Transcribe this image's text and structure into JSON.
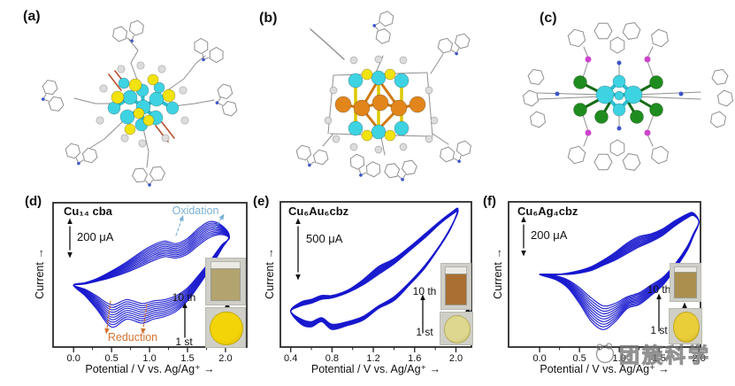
{
  "palette": {
    "curve_blue": "#1717cd",
    "oxidation_blue": "#7ab0d4",
    "reduction_orange": "#d2722e",
    "box_black": "#2b2b2b",
    "wire_gray": "#8f8f8f",
    "h_gray": "#dcdcdc",
    "atom_cyan": "#3ed3e2",
    "atom_yellow": "#f2e20e",
    "atom_orange": "#e2861c",
    "atom_green": "#1f8c1f",
    "atom_magenta": "#cc44cc",
    "atom_blue": "#3c55c8",
    "bond_red": "#b5512a",
    "photo_bg": "#cfcfc8"
  },
  "top_panels": [
    {
      "label": "(a)"
    },
    {
      "label": "(b)"
    },
    {
      "label": "(c)"
    }
  ],
  "cv_panels": [
    {
      "label": "(d)",
      "title": "Cu₁₄ cba",
      "scale_bar": "200 μA",
      "y_axis_label": "Current →",
      "x_axis_label": "Potential / V vs. Ag/Ag⁺ →",
      "x_tick_labels": [
        "0.0",
        "0.5",
        "1.0",
        "1.5",
        "2.0"
      ],
      "cycle_first": "1 st",
      "cycle_last": "10 th",
      "oxidation_label": "Oxidation",
      "reduction_label": "Reduction",
      "inset": {
        "solution_color": "#b3a36e",
        "powder_color": "#f2d408",
        "powder_color_dark": "#d8b806"
      }
    },
    {
      "label": "(e)",
      "title": "Cu₆Au₆cbz",
      "scale_bar": "500 μA",
      "y_axis_label": "Current →",
      "x_axis_label": "Potential / V vs. Ag/Ag⁺ →",
      "x_tick_labels": [
        "0.4",
        "0.8",
        "1.2",
        "1.6",
        "2.0"
      ],
      "cycle_first": "1 st",
      "cycle_last": "10 th",
      "inset": {
        "solution_color": "#a96f33",
        "powder_color": "#ddd78f",
        "powder_color_dark": "#c6c071"
      }
    },
    {
      "label": "(f)",
      "title": "Cu₆Ag₄cbz",
      "scale_bar": "200 μA",
      "y_axis_label": "Current →",
      "x_axis_label": "Potential / V vs. Ag/Ag⁺ →",
      "x_tick_labels": [
        "0.0",
        "0.5",
        "1.0",
        "1.5",
        "2.0"
      ],
      "cycle_first": "1 st",
      "cycle_last": "10 th",
      "inset": {
        "solution_color": "#ab8f4f",
        "powder_color": "#e9cd39",
        "powder_color_dark": "#cfb122"
      }
    }
  ],
  "watermark": {
    "text": "团簇科学"
  },
  "chart_data": [
    {
      "type": "line",
      "title": "Cu₁₄ cba cyclic voltammogram",
      "xlabel": "Potential / V vs. Ag/Ag⁺",
      "ylabel": "Current (scale bar 200 μA)",
      "x_ticks": [
        0.0,
        0.5,
        1.0,
        1.5,
        2.0
      ],
      "x_range": [
        -0.27,
        2.28
      ],
      "cycles": 10,
      "y_units": "normalized 0-1 of plot height",
      "x": [
        0.0,
        0.15,
        0.3,
        0.5,
        0.7,
        0.9,
        1.05,
        1.2,
        1.35,
        1.5,
        1.65,
        1.8,
        1.95,
        2.05
      ],
      "forward_cycle10": [
        0.42,
        0.44,
        0.47,
        0.53,
        0.6,
        0.68,
        0.73,
        0.76,
        0.74,
        0.78,
        0.86,
        0.91,
        0.88,
        0.8
      ],
      "forward_cycle1": [
        0.42,
        0.43,
        0.45,
        0.48,
        0.52,
        0.57,
        0.61,
        0.64,
        0.63,
        0.66,
        0.73,
        0.79,
        0.81,
        0.78
      ],
      "return_cycle10": [
        0.42,
        0.34,
        0.24,
        0.1,
        0.16,
        0.13,
        0.16,
        0.18,
        0.22,
        0.3,
        0.42,
        0.55,
        0.7,
        0.8
      ],
      "return_cycle1": [
        0.42,
        0.39,
        0.34,
        0.27,
        0.31,
        0.28,
        0.3,
        0.31,
        0.34,
        0.4,
        0.5,
        0.61,
        0.73,
        0.78
      ]
    },
    {
      "type": "line",
      "title": "Cu₆Au₆cbz cyclic voltammogram",
      "xlabel": "Potential / V vs. Ag/Ag⁺",
      "ylabel": "Current (scale bar 500 μA)",
      "x_ticks": [
        0.4,
        0.8,
        1.2,
        1.6,
        2.0
      ],
      "x_range": [
        0.3,
        2.15
      ],
      "cycles": 10,
      "y_units": "normalized 0-1 of plot height",
      "x": [
        0.4,
        0.5,
        0.6,
        0.7,
        0.8,
        0.95,
        1.1,
        1.25,
        1.4,
        1.55,
        1.7,
        1.85,
        1.95,
        2.02
      ],
      "forward_cycle10": [
        0.22,
        0.29,
        0.31,
        0.34,
        0.34,
        0.38,
        0.46,
        0.56,
        0.62,
        0.71,
        0.81,
        0.91,
        0.97,
        1.0
      ],
      "forward_cycle1": [
        0.22,
        0.26,
        0.28,
        0.31,
        0.32,
        0.36,
        0.42,
        0.5,
        0.58,
        0.68,
        0.78,
        0.89,
        0.95,
        0.98
      ],
      "return_cycle10": [
        0.22,
        0.12,
        0.1,
        0.14,
        0.08,
        0.11,
        0.15,
        0.24,
        0.3,
        0.42,
        0.55,
        0.72,
        0.85,
        1.0
      ],
      "return_cycle1": [
        0.22,
        0.16,
        0.14,
        0.17,
        0.12,
        0.14,
        0.18,
        0.26,
        0.33,
        0.44,
        0.57,
        0.73,
        0.86,
        0.98
      ]
    },
    {
      "type": "line",
      "title": "Cu₆Ag₄cbz cyclic voltammogram",
      "xlabel": "Potential / V vs. Ag/Ag⁺",
      "ylabel": "Current (scale bar 200 μA)",
      "x_ticks": [
        0.0,
        0.5,
        1.0,
        1.5,
        2.0
      ],
      "x_range": [
        -0.39,
        2.02
      ],
      "cycles": 10,
      "y_units": "normalized 0-1 of plot height",
      "x": [
        0.0,
        0.2,
        0.35,
        0.5,
        0.65,
        0.8,
        0.95,
        1.1,
        1.25,
        1.4,
        1.55,
        1.7,
        1.85,
        1.93,
        2.0
      ],
      "forward_cycle10": [
        0.5,
        0.5,
        0.51,
        0.53,
        0.56,
        0.61,
        0.67,
        0.74,
        0.79,
        0.81,
        0.85,
        0.91,
        0.96,
        0.97,
        0.9
      ],
      "forward_cycle1": [
        0.5,
        0.5,
        0.5,
        0.51,
        0.53,
        0.57,
        0.61,
        0.66,
        0.71,
        0.75,
        0.8,
        0.87,
        0.93,
        0.95,
        0.9
      ],
      "return_cycle10": [
        0.5,
        0.46,
        0.4,
        0.28,
        0.14,
        0.08,
        0.14,
        0.24,
        0.27,
        0.34,
        0.42,
        0.54,
        0.68,
        0.79,
        0.9
      ],
      "return_cycle1": [
        0.5,
        0.49,
        0.46,
        0.4,
        0.32,
        0.26,
        0.28,
        0.33,
        0.36,
        0.42,
        0.48,
        0.58,
        0.71,
        0.81,
        0.9
      ]
    }
  ]
}
